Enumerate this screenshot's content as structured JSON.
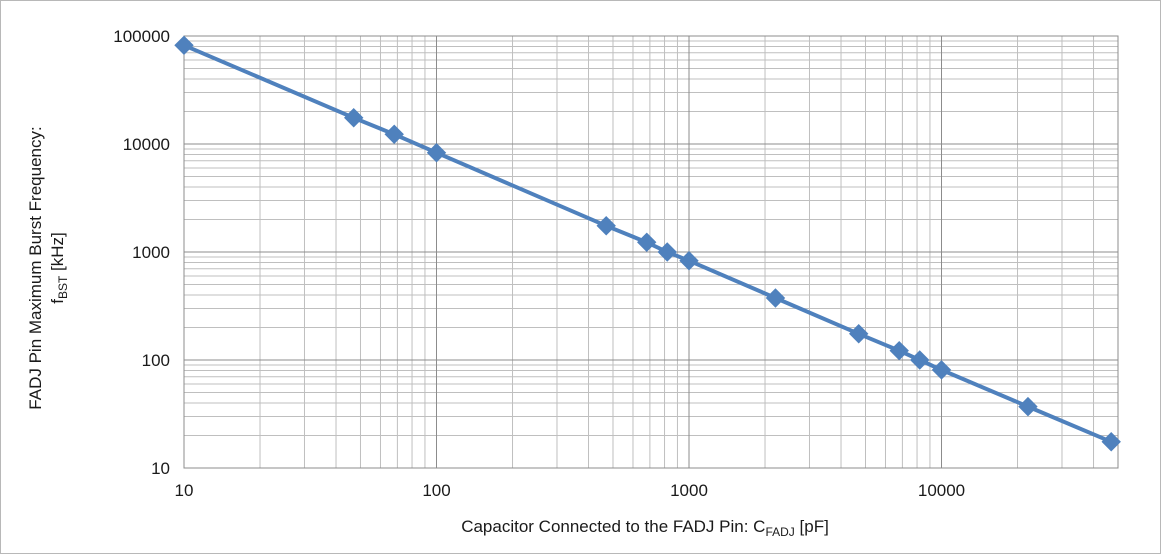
{
  "chart_data": {
    "type": "line",
    "xscale": "log",
    "yscale": "log",
    "xlim": [
      10,
      50000
    ],
    "ylim": [
      10,
      100000
    ],
    "grid": true,
    "legend": "none",
    "series_color": "#4f81bd",
    "marker": "diamond",
    "x_ticks": [
      "10",
      "100",
      "1000",
      "10000"
    ],
    "y_ticks": [
      "10",
      "100",
      "1000",
      "10000",
      "100000"
    ],
    "xlabel": {
      "main": "Capacitor Connected to the FADJ Pin: C",
      "sub": "FADJ",
      "suffix": " [pF]"
    },
    "ylabel": {
      "line1": "FADJ Pin  Maximum Burst Frequency:",
      "line2_main": "f",
      "line2_sub": "BST",
      "line2_suffix": " [kHz]"
    },
    "series": [
      {
        "points": [
          [
            10,
            82000
          ],
          [
            47,
            17500
          ],
          [
            68,
            12300
          ],
          [
            100,
            8300
          ],
          [
            470,
            1750
          ],
          [
            680,
            1230
          ],
          [
            820,
            1000
          ],
          [
            1000,
            830
          ],
          [
            2200,
            375
          ],
          [
            4700,
            175
          ],
          [
            6800,
            122
          ],
          [
            8200,
            100
          ],
          [
            10000,
            81
          ],
          [
            22000,
            37
          ],
          [
            47000,
            17.5
          ]
        ]
      }
    ]
  }
}
